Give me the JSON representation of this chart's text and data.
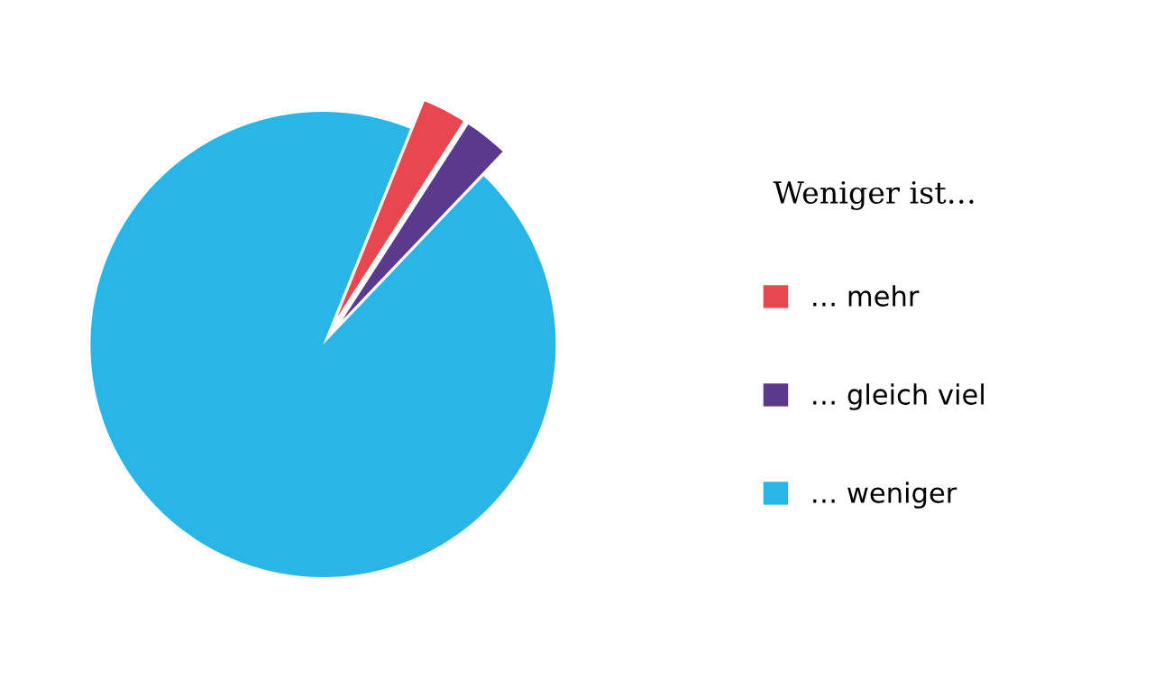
{
  "chart_data": {
    "type": "pie",
    "legend_title": "Weniger ist…",
    "categories": [
      "… mehr",
      "… gleich viel",
      "… weniger"
    ],
    "values": [
      3,
      3,
      94
    ],
    "colors": [
      "#e8474f",
      "#5b3a8e",
      "#29b6e6"
    ],
    "legend": "right"
  }
}
